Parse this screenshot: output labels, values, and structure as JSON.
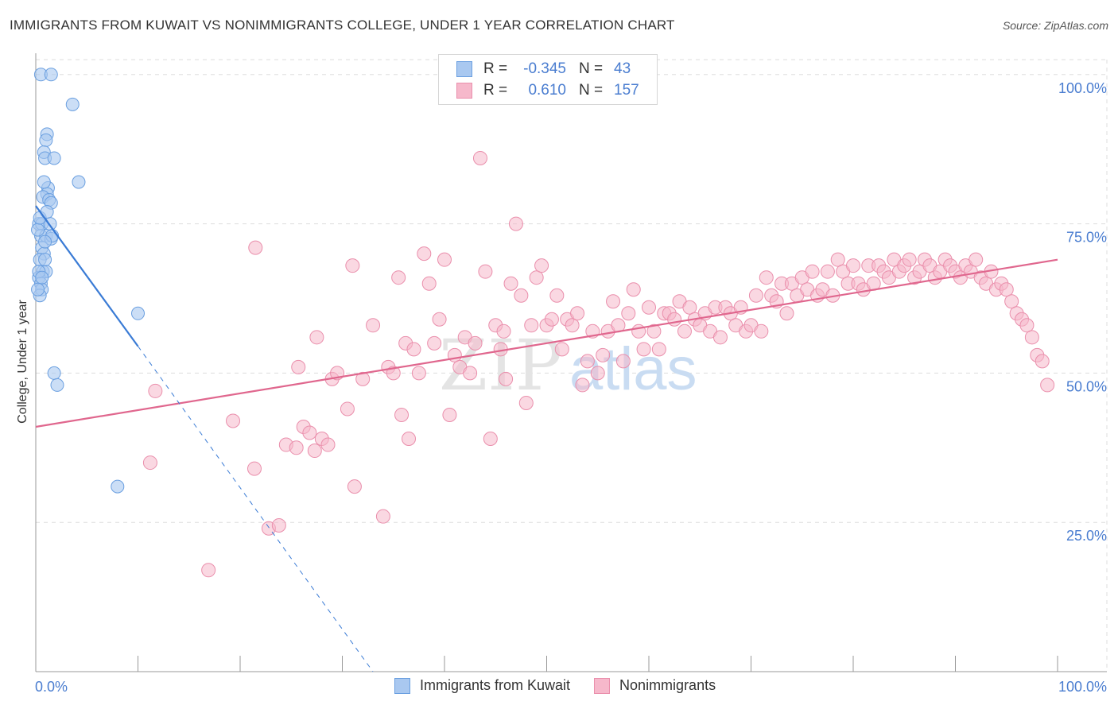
{
  "title": "IMMIGRANTS FROM KUWAIT VS NONIMMIGRANTS COLLEGE, UNDER 1 YEAR CORRELATION CHART",
  "source": "Source: ZipAtlas.com",
  "watermark": {
    "part1": "ZIP",
    "part2": "atlas"
  },
  "legend": {
    "rows": [
      {
        "r_label": "R =",
        "r_value": "-0.345",
        "n_label": "N =",
        "n_value": "43"
      },
      {
        "r_label": "R =",
        "r_value": "0.610",
        "n_label": "N =",
        "n_value": "157"
      }
    ]
  },
  "bottom_legend": {
    "series1": "Immigrants from Kuwait",
    "series2": "Nonimmigrants"
  },
  "colors": {
    "blue_fill": "#a9c8f0",
    "blue_stroke": "#6a9fe0",
    "blue_line": "#3a7bd5",
    "pink_fill": "#f6b8cb",
    "pink_stroke": "#ea8fac",
    "pink_line": "#e0678e",
    "tick_label": "#4a7dd0",
    "grid": "#dddddd"
  },
  "chart_data": {
    "type": "scatter",
    "title": "IMMIGRANTS FROM KUWAIT VS NONIMMIGRANTS COLLEGE, UNDER 1 YEAR CORRELATION CHART",
    "xlabel": "",
    "ylabel": "College, Under 1 year",
    "xlim": [
      0,
      100
    ],
    "ylim": [
      0,
      102.5
    ],
    "x_tick_labels": [
      "0.0%",
      "100.0%"
    ],
    "y_ticks": [
      25,
      50,
      75,
      100
    ],
    "y_tick_labels": [
      "25.0%",
      "50.0%",
      "75.0%",
      "100.0%"
    ],
    "grid": true,
    "series": [
      {
        "name": "Immigrants from Kuwait",
        "R": -0.345,
        "N": 43,
        "trend": {
          "x0": 0,
          "y0": 78,
          "x1": 10,
          "y1": 54.5,
          "dashed_to": {
            "x": 33,
            "y": 0
          }
        },
        "points": [
          [
            0.5,
            100
          ],
          [
            1.5,
            100
          ],
          [
            3.6,
            95
          ],
          [
            1.1,
            90
          ],
          [
            1.0,
            89
          ],
          [
            0.8,
            87
          ],
          [
            0.9,
            86
          ],
          [
            1.8,
            86
          ],
          [
            4.2,
            82
          ],
          [
            1.2,
            81
          ],
          [
            1.1,
            80
          ],
          [
            0.7,
            79.5
          ],
          [
            1.3,
            79
          ],
          [
            1.5,
            78.5
          ],
          [
            0.3,
            75
          ],
          [
            0.6,
            75
          ],
          [
            1.4,
            75
          ],
          [
            0.5,
            73
          ],
          [
            1.0,
            73
          ],
          [
            1.5,
            72.5
          ],
          [
            0.6,
            71
          ],
          [
            0.8,
            70
          ],
          [
            0.4,
            69
          ],
          [
            0.7,
            67
          ],
          [
            1.0,
            67
          ],
          [
            0.3,
            66
          ],
          [
            0.5,
            65
          ],
          [
            0.6,
            64
          ],
          [
            0.4,
            63
          ],
          [
            10.0,
            60
          ],
          [
            1.8,
            50
          ],
          [
            2.1,
            48
          ],
          [
            8.0,
            31
          ],
          [
            0.9,
            69
          ],
          [
            0.2,
            74
          ],
          [
            0.4,
            76
          ],
          [
            0.8,
            82
          ],
          [
            1.6,
            73
          ],
          [
            0.3,
            67
          ],
          [
            0.6,
            66
          ],
          [
            0.9,
            72
          ],
          [
            1.1,
            77
          ],
          [
            0.2,
            64
          ]
        ]
      },
      {
        "name": "Nonimmigrants",
        "R": 0.61,
        "N": 157,
        "trend": {
          "x0": 0,
          "y0": 41,
          "x1": 100,
          "y1": 69
        },
        "points": [
          [
            11.7,
            47
          ],
          [
            11.2,
            35
          ],
          [
            16.9,
            17
          ],
          [
            19.3,
            42
          ],
          [
            21.4,
            34
          ],
          [
            21.5,
            71
          ],
          [
            22.8,
            24
          ],
          [
            23.8,
            24.5
          ],
          [
            24.5,
            38
          ],
          [
            25.5,
            37.5
          ],
          [
            25.7,
            51
          ],
          [
            26.2,
            41
          ],
          [
            26.8,
            40
          ],
          [
            27.3,
            37
          ],
          [
            27.5,
            56
          ],
          [
            28.0,
            39
          ],
          [
            28.6,
            38
          ],
          [
            29.0,
            49
          ],
          [
            29.5,
            50
          ],
          [
            30.5,
            44
          ],
          [
            31.0,
            68
          ],
          [
            31.2,
            31
          ],
          [
            32.0,
            49
          ],
          [
            33.0,
            58
          ],
          [
            34.0,
            26
          ],
          [
            34.5,
            51
          ],
          [
            35.0,
            50
          ],
          [
            35.5,
            66
          ],
          [
            35.8,
            43
          ],
          [
            36.2,
            55
          ],
          [
            36.5,
            39
          ],
          [
            37.0,
            54
          ],
          [
            37.5,
            50
          ],
          [
            38.0,
            70
          ],
          [
            38.5,
            65
          ],
          [
            39.0,
            55
          ],
          [
            39.5,
            59
          ],
          [
            40.0,
            69
          ],
          [
            40.5,
            43
          ],
          [
            41.0,
            53
          ],
          [
            41.5,
            51
          ],
          [
            42.0,
            56
          ],
          [
            42.5,
            50
          ],
          [
            43.0,
            55
          ],
          [
            43.5,
            86
          ],
          [
            44.0,
            67
          ],
          [
            44.5,
            39
          ],
          [
            45.0,
            58
          ],
          [
            45.5,
            54
          ],
          [
            46.0,
            49
          ],
          [
            46.5,
            65
          ],
          [
            47.0,
            75
          ],
          [
            47.5,
            63
          ],
          [
            48.0,
            45
          ],
          [
            48.5,
            58
          ],
          [
            49.0,
            66
          ],
          [
            49.5,
            68
          ],
          [
            50.0,
            58
          ],
          [
            50.5,
            59
          ],
          [
            51.0,
            63
          ],
          [
            51.5,
            54
          ],
          [
            52.0,
            59
          ],
          [
            52.5,
            58
          ],
          [
            53.0,
            60
          ],
          [
            53.5,
            48
          ],
          [
            54.0,
            52
          ],
          [
            54.5,
            57
          ],
          [
            55.0,
            50
          ],
          [
            55.5,
            53
          ],
          [
            56.0,
            57
          ],
          [
            56.5,
            62
          ],
          [
            57.0,
            58
          ],
          [
            57.5,
            52
          ],
          [
            58.0,
            60
          ],
          [
            58.5,
            64
          ],
          [
            59.0,
            57
          ],
          [
            59.5,
            54
          ],
          [
            60.0,
            61
          ],
          [
            60.5,
            57
          ],
          [
            61.0,
            54
          ],
          [
            61.5,
            60
          ],
          [
            62.0,
            60
          ],
          [
            62.5,
            59
          ],
          [
            63.0,
            62
          ],
          [
            63.5,
            57
          ],
          [
            64.0,
            61
          ],
          [
            64.5,
            59
          ],
          [
            65.0,
            58
          ],
          [
            65.5,
            60
          ],
          [
            66.0,
            57
          ],
          [
            66.5,
            61
          ],
          [
            67.0,
            56
          ],
          [
            67.5,
            61
          ],
          [
            68.0,
            60
          ],
          [
            68.5,
            58
          ],
          [
            69.0,
            61
          ],
          [
            69.5,
            57
          ],
          [
            70.0,
            58
          ],
          [
            70.5,
            63
          ],
          [
            71.0,
            57
          ],
          [
            71.5,
            66
          ],
          [
            72.0,
            63
          ],
          [
            72.5,
            62
          ],
          [
            73.0,
            65
          ],
          [
            73.5,
            60
          ],
          [
            74.0,
            65
          ],
          [
            74.5,
            63
          ],
          [
            75.0,
            66
          ],
          [
            75.5,
            64
          ],
          [
            76.0,
            67
          ],
          [
            76.5,
            63
          ],
          [
            77.0,
            64
          ],
          [
            77.5,
            67
          ],
          [
            78.0,
            63
          ],
          [
            78.5,
            69
          ],
          [
            79.0,
            67
          ],
          [
            79.5,
            65
          ],
          [
            80.0,
            68
          ],
          [
            80.5,
            65
          ],
          [
            81.0,
            64
          ],
          [
            81.5,
            68
          ],
          [
            82.0,
            65
          ],
          [
            82.5,
            68
          ],
          [
            83.0,
            67
          ],
          [
            83.5,
            66
          ],
          [
            84.0,
            69
          ],
          [
            84.5,
            67
          ],
          [
            85.0,
            68
          ],
          [
            85.5,
            69
          ],
          [
            86.0,
            66
          ],
          [
            86.5,
            67
          ],
          [
            87.0,
            69
          ],
          [
            87.5,
            68
          ],
          [
            88.0,
            66
          ],
          [
            88.5,
            67
          ],
          [
            89.0,
            69
          ],
          [
            89.5,
            68
          ],
          [
            90.0,
            67
          ],
          [
            90.5,
            66
          ],
          [
            91.0,
            68
          ],
          [
            91.5,
            67
          ],
          [
            92.0,
            69
          ],
          [
            92.5,
            66
          ],
          [
            93.0,
            65
          ],
          [
            93.5,
            67
          ],
          [
            94.0,
            64
          ],
          [
            94.5,
            65
          ],
          [
            95.0,
            64
          ],
          [
            95.5,
            62
          ],
          [
            96.0,
            60
          ],
          [
            96.5,
            59
          ],
          [
            97.0,
            58
          ],
          [
            97.5,
            56
          ],
          [
            98.0,
            53
          ],
          [
            98.5,
            52
          ],
          [
            99.0,
            48
          ],
          [
            45.8,
            57
          ]
        ]
      }
    ]
  }
}
